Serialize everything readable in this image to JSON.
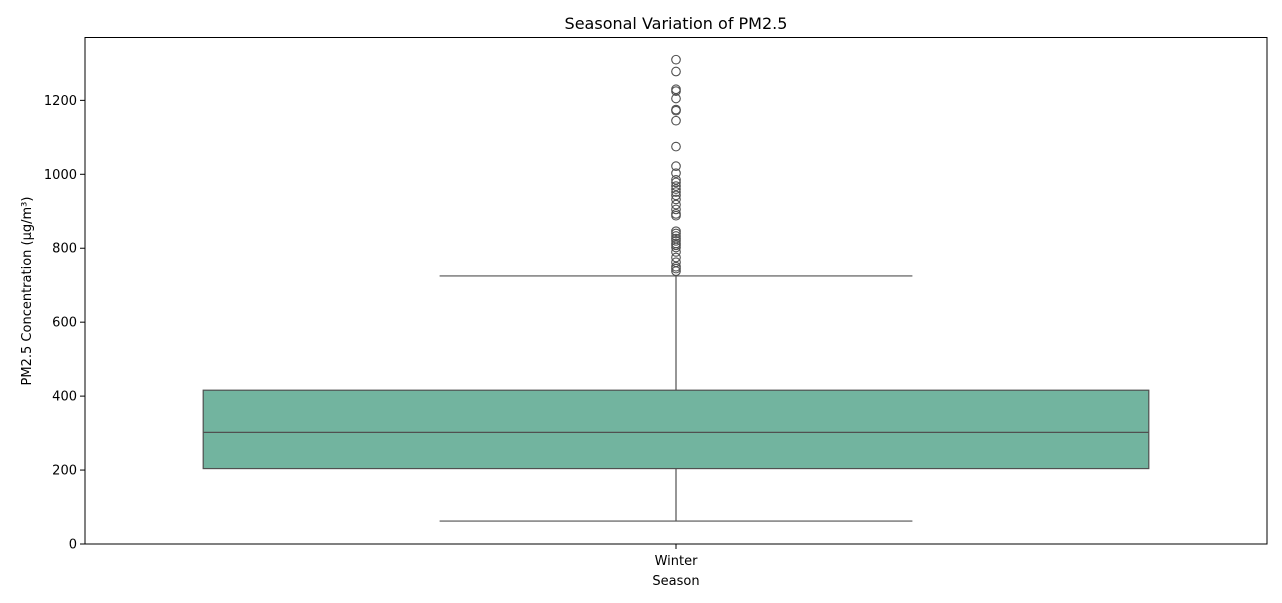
{
  "chart_data": {
    "type": "box",
    "title": "Seasonal Variation of PM2.5",
    "xlabel": "Season",
    "ylabel": "PM2.5 Concentration (µg/m³)",
    "ylim": [
      0,
      1370
    ],
    "yticks": [
      0,
      200,
      400,
      600,
      800,
      1000,
      1200
    ],
    "grid": false,
    "colors": {
      "box_fill": "#72b49f",
      "line": "#505050",
      "frame": "#000000"
    },
    "categories": [
      "Winter"
    ],
    "boxes": [
      {
        "category": "Winter",
        "whisker_low": 62,
        "q1": 204,
        "median": 302,
        "q3": 416,
        "whisker_high": 725,
        "outliers": [
          738,
          745,
          750,
          762,
          775,
          790,
          802,
          808,
          813,
          820,
          826,
          833,
          840,
          846,
          888,
          893,
          905,
          918,
          932,
          943,
          952,
          960,
          968,
          978,
          985,
          1003,
          1022,
          1075,
          1145,
          1172,
          1175,
          1205,
          1225,
          1230,
          1278,
          1310
        ]
      }
    ]
  }
}
